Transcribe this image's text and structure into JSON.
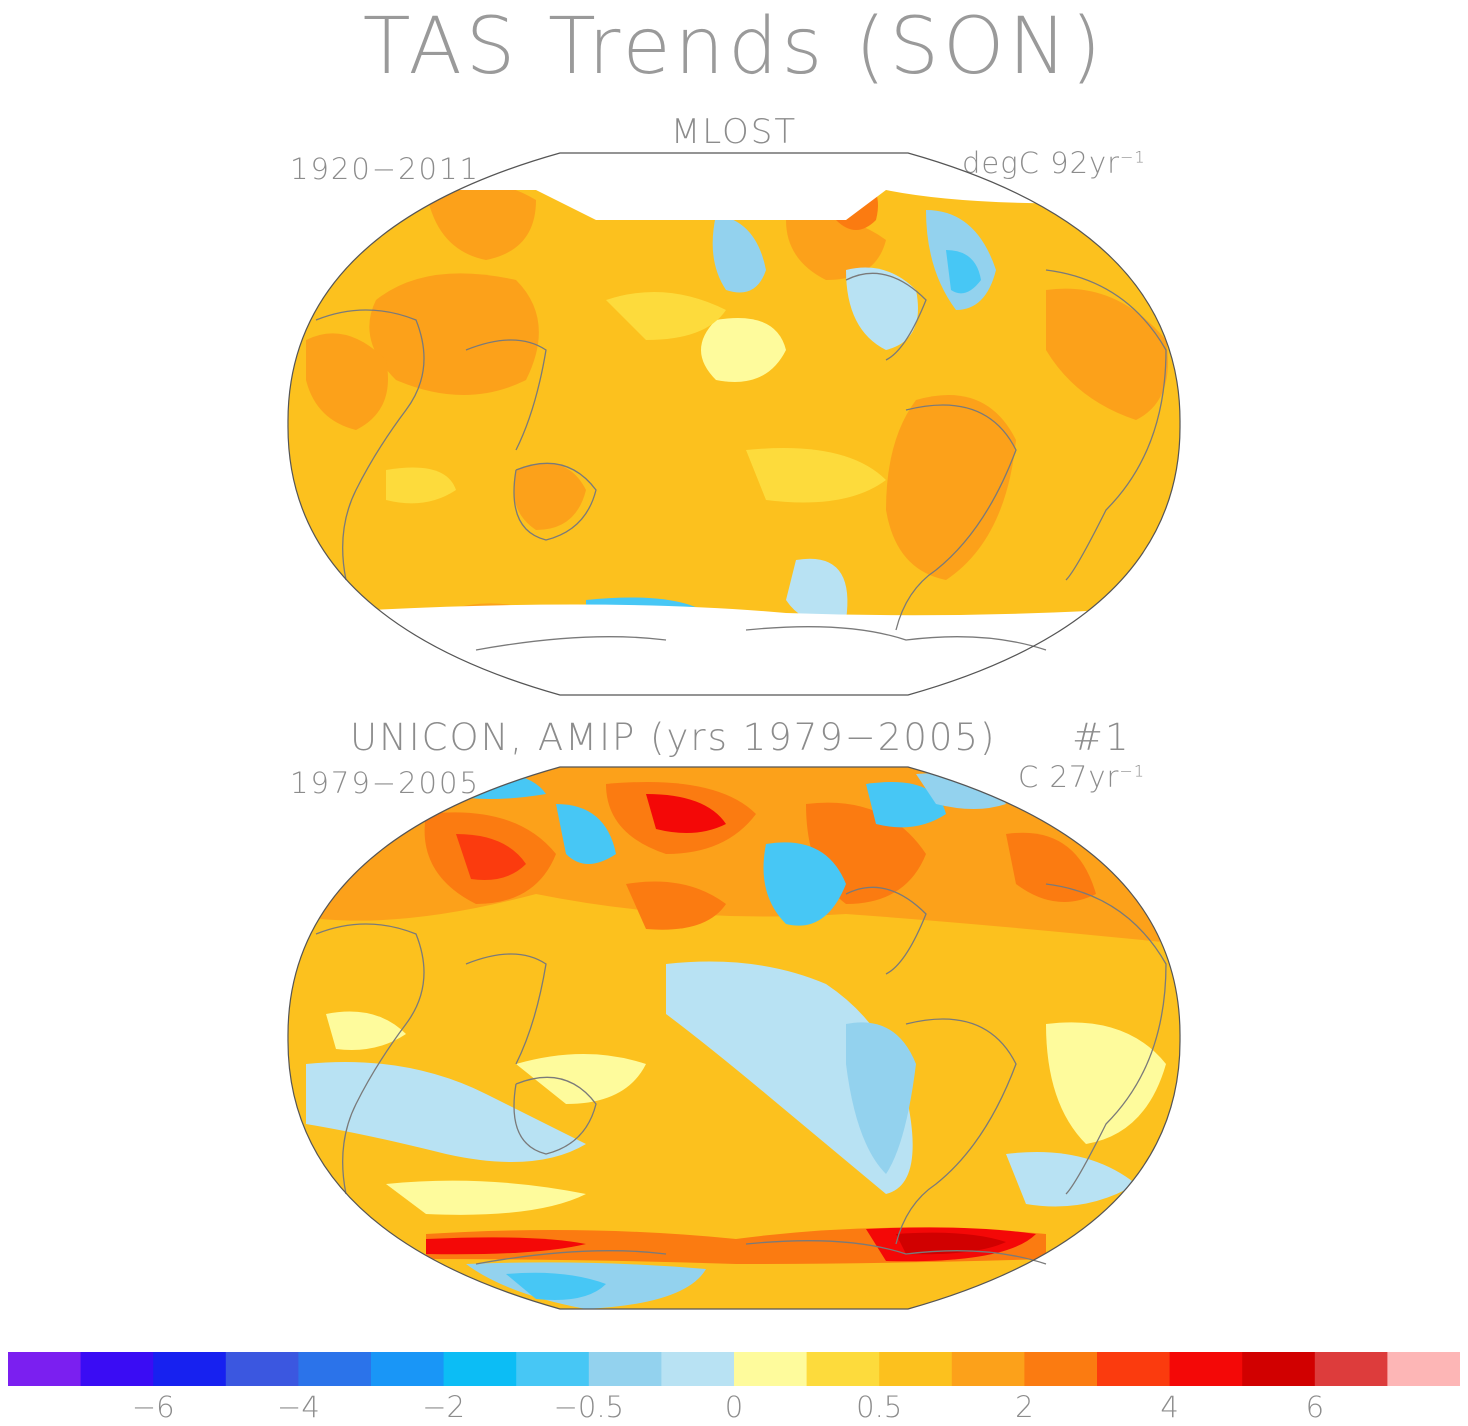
{
  "title": "TAS Trends (SON)",
  "panels": [
    {
      "title": "MLOST",
      "period": "1920−2011",
      "units_prefix": "degC 92yr",
      "units_exp": "−1"
    },
    {
      "title": "UNICON, AMIP (yrs 1979−2005)",
      "run": "#1",
      "period": "1979−2005",
      "units_prefix": "C 27yr",
      "units_exp": "−1"
    }
  ],
  "colorbar": {
    "colors": [
      "#7b1ff0",
      "#3a0cf4",
      "#1721f0",
      "#3b57e0",
      "#2b73ea",
      "#1996f7",
      "#0cbdf5",
      "#47c7f5",
      "#93d2ee",
      "#b8e2f3",
      "#fefb9c",
      "#fddb3c",
      "#fcc11e",
      "#fca11a",
      "#fb7b11",
      "#fb3b0e",
      "#f40807",
      "#d10000",
      "#dd3c3c",
      "#fdb6b6"
    ],
    "labels": [
      "−6",
      "−4",
      "−2",
      "−0.5",
      "0",
      "0.5",
      "2",
      "4",
      "6"
    ]
  }
}
